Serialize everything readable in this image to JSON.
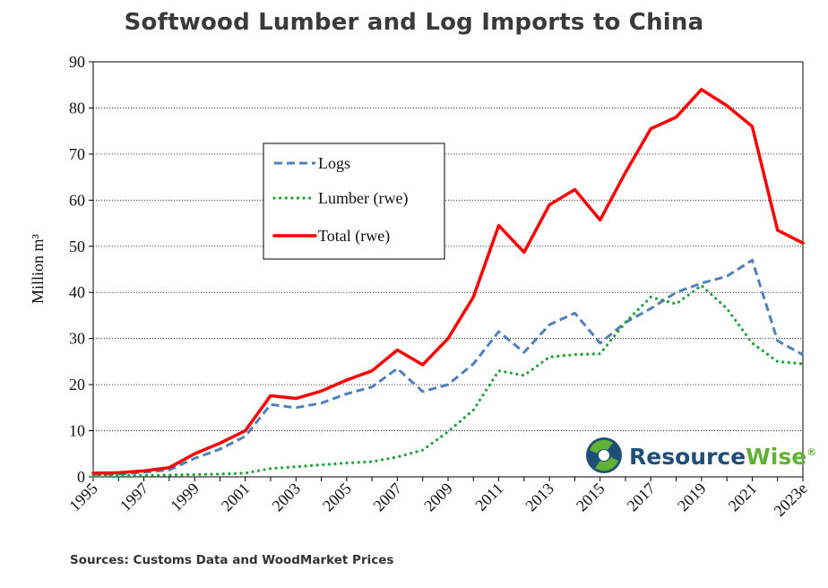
{
  "chart_data": {
    "type": "line",
    "title": "Softwood Lumber and Log Imports to China",
    "ylabel": "Million m³",
    "xlabel": "",
    "ylim": [
      0,
      90
    ],
    "yticks": [
      0,
      10,
      20,
      30,
      40,
      50,
      60,
      70,
      80,
      90
    ],
    "grid": true,
    "legend_position": "upper-left",
    "categories": [
      "1995",
      "1996",
      "1997",
      "1998",
      "1999",
      "2000",
      "2001",
      "2002",
      "2003",
      "2004",
      "2005",
      "2006",
      "2007",
      "2008",
      "2009",
      "2010",
      "2011",
      "2012",
      "2013",
      "2014",
      "2015",
      "2016",
      "2017",
      "2018",
      "2019",
      "2020",
      "2021",
      "2022",
      "2023e"
    ],
    "tick_labels": [
      "1995",
      "1997",
      "1999",
      "2001",
      "2003",
      "2005",
      "2007",
      "2009",
      "2011",
      "2013",
      "2015",
      "2017",
      "2019",
      "2021",
      "2023e"
    ],
    "series": [
      {
        "name": "Logs",
        "color": "#4f81bd",
        "style": "dashed",
        "values": [
          0.5,
          0.6,
          1.0,
          1.5,
          4.0,
          6.0,
          8.8,
          15.7,
          15.0,
          16.0,
          18.0,
          19.5,
          23.5,
          18.5,
          20.0,
          24.5,
          31.5,
          27.0,
          33.0,
          35.5,
          29.0,
          33.5,
          36.5,
          40.0,
          42.0,
          43.5,
          47.0,
          29.5,
          26.5
        ]
      },
      {
        "name": "Lumber (rwe)",
        "color": "#1fa33a",
        "style": "dotted",
        "values": [
          0.2,
          0.3,
          0.3,
          0.4,
          0.5,
          0.6,
          0.8,
          1.8,
          2.2,
          2.6,
          3.0,
          3.3,
          4.3,
          5.8,
          9.8,
          14.5,
          23.0,
          22.0,
          26.0,
          26.5,
          26.7,
          33.5,
          39.0,
          37.5,
          41.5,
          36.5,
          29.0,
          25.0,
          24.5
        ]
      },
      {
        "name": "Total (rwe)",
        "color": "#ff0000",
        "style": "solid",
        "values": [
          0.8,
          0.9,
          1.3,
          2.0,
          5.0,
          7.3,
          10.0,
          17.6,
          17.0,
          18.6,
          21.0,
          23.0,
          27.5,
          24.3,
          30.0,
          39.0,
          54.5,
          48.7,
          59.0,
          62.3,
          55.7,
          66.0,
          75.5,
          78.0,
          84.0,
          80.5,
          76.0,
          53.5,
          50.7
        ]
      }
    ],
    "source": "Sources: Customs Data and WoodMarket Prices"
  },
  "brand": {
    "name_part1": "Resource",
    "name_part2": "Wise",
    "registered_mark": "®",
    "colors": {
      "blue": "#1f4e79",
      "green": "#5fb236"
    }
  }
}
